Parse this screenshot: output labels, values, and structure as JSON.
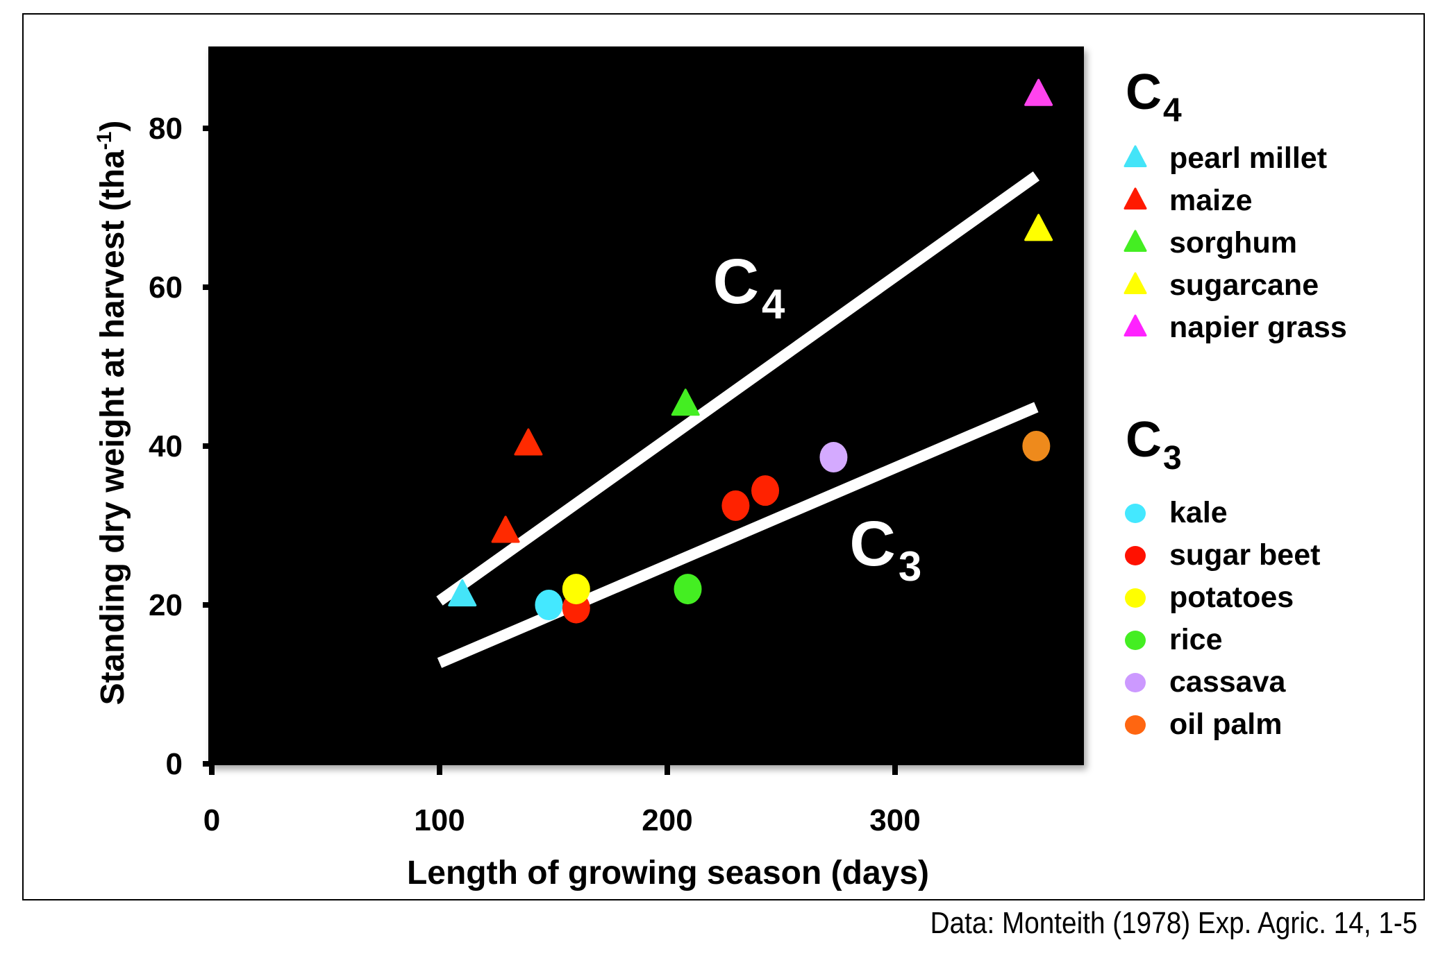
{
  "chart_data": {
    "type": "scatter",
    "title": "",
    "xlabel": "Length of growing season (days)",
    "ylabel_main": "Standing dry weight at harvest (tha",
    "ylabel_sup": "-1",
    "ylabel_close": ")",
    "xlim": [
      0,
      385
    ],
    "ylim": [
      0,
      90
    ],
    "x_ticks": [
      0,
      100,
      200,
      300
    ],
    "y_ticks": [
      0,
      20,
      40,
      60,
      80
    ],
    "grid": false,
    "background": "#000000",
    "legend_position": "right",
    "groups": [
      {
        "name": "C",
        "sub": "4",
        "marker": "triangle",
        "series": [
          {
            "name": "pearl millet",
            "color": "#44e4f8",
            "plot_color": "#44e4f8",
            "points": [
              [
                110,
                21
              ]
            ]
          },
          {
            "name": "maize",
            "color": "#ff1a00",
            "plot_color": "#ff2a00",
            "points": [
              [
                129,
                29
              ],
              [
                139,
                40
              ]
            ]
          },
          {
            "name": "sorghum",
            "color": "#44ee22",
            "plot_color": "#44ee22",
            "points": [
              [
                208,
                45
              ]
            ]
          },
          {
            "name": "sugarcane",
            "color": "#ffff00",
            "plot_color": "#ffff00",
            "points": [
              [
                363,
                67
              ]
            ]
          },
          {
            "name": "napier grass",
            "color": "#ff22ff",
            "plot_color": "#ff44ee",
            "points": [
              [
                363,
                84
              ]
            ]
          }
        ],
        "trendline": {
          "x": [
            100,
            362
          ],
          "y": [
            20.5,
            74
          ],
          "label": "C",
          "label_sub": "4",
          "label_at": [
            220,
            58
          ]
        }
      },
      {
        "name": "C",
        "sub": "3",
        "marker": "circle",
        "series": [
          {
            "name": "kale",
            "color": "#44e8ff",
            "plot_color": "#44e8ff",
            "points": [
              [
                148,
                20
              ]
            ]
          },
          {
            "name": "sugar beet",
            "color": "#ff1100",
            "plot_color": "#ff2200",
            "points": [
              [
                160,
                19.6
              ],
              [
                230,
                32.5
              ],
              [
                243,
                34.4
              ]
            ]
          },
          {
            "name": "potatoes",
            "color": "#ffff00",
            "plot_color": "#ffff00",
            "points": [
              [
                160,
                22
              ]
            ]
          },
          {
            "name": "rice",
            "color": "#44ee22",
            "plot_color": "#44ee22",
            "points": [
              [
                209,
                22
              ]
            ]
          },
          {
            "name": "cassava",
            "color": "#cc99ff",
            "plot_color": "#d4aaff",
            "points": [
              [
                273,
                38.6
              ]
            ]
          },
          {
            "name": "oil palm",
            "color": "#ff6611",
            "plot_color": "#ee8a1c",
            "points": [
              [
                362,
                40
              ]
            ]
          }
        ],
        "trendline": {
          "x": [
            100,
            362
          ],
          "y": [
            12.7,
            44.9
          ],
          "label": "C",
          "label_sub": "3",
          "label_at": [
            280,
            25
          ]
        }
      }
    ]
  },
  "source_note": "Data: Monteith (1978) Exp. Agric. 14, 1-5"
}
